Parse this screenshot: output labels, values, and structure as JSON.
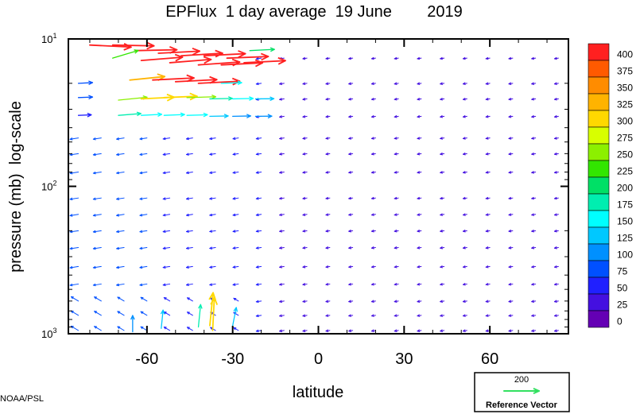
{
  "chart_data": {
    "type": "quiver",
    "title": "EPFlux  1 day average  19 June        2019",
    "xlabel": "latitude",
    "ylabel": "pressure (mb)  log-scale",
    "x_ticks": [
      -60,
      -30,
      0,
      30,
      60
    ],
    "x_tick_labels": [
      "-60",
      "-30",
      "0",
      "30",
      "60"
    ],
    "xlim": [
      -87.5,
      87.5
    ],
    "ylim": [
      1000,
      10
    ],
    "y_scale": "log",
    "y_ticks": [
      {
        "value": 10,
        "base": "10",
        "exp": "1"
      },
      {
        "value": 100,
        "base": "10",
        "exp": "2"
      },
      {
        "value": 1000,
        "base": "10",
        "exp": "3"
      }
    ],
    "grid": false,
    "colorbar": {
      "levels": [
        "400",
        "375",
        "350",
        "325",
        "300",
        "275",
        "250",
        "225",
        "200",
        "175",
        "150",
        "125",
        "100",
        "75",
        "50",
        "25",
        "0"
      ],
      "colors": [
        "#ff2020",
        "#ff5a00",
        "#ff8c00",
        "#ffb300",
        "#ffd800",
        "#d8ff00",
        "#8cf000",
        "#32e600",
        "#00e066",
        "#00eeb0",
        "#00ffff",
        "#00c8ff",
        "#0090ff",
        "#0050ff",
        "#2020ff",
        "#4410e0",
        "#6400b4"
      ]
    },
    "reference_vector": {
      "magnitude": "200",
      "label": "Reference Vector",
      "color": "#32e060"
    },
    "vectors": [
      {
        "lat": -80,
        "p": 11,
        "u": 1,
        "v": -0.05,
        "mag": 400
      },
      {
        "lat": -72,
        "p": 11,
        "u": 1,
        "v": -0.02,
        "mag": 400
      },
      {
        "lat": -64,
        "p": 12,
        "u": 1,
        "v": 0.02,
        "mag": 400
      },
      {
        "lat": -56,
        "p": 12.5,
        "u": 1,
        "v": 0.05,
        "mag": 400
      },
      {
        "lat": -48,
        "p": 13,
        "u": 1,
        "v": 0.06,
        "mag": 400
      },
      {
        "lat": -40,
        "p": 13,
        "u": 1,
        "v": 0.05,
        "mag": 400
      },
      {
        "lat": -32,
        "p": 13.5,
        "u": 1,
        "v": 0.04,
        "mag": 400
      },
      {
        "lat": -24,
        "p": 12,
        "u": 1,
        "v": 0.05,
        "mag": 200
      },
      {
        "lat": -72,
        "p": 13.5,
        "u": 1,
        "v": 0.3,
        "mag": 225
      },
      {
        "lat": -62,
        "p": 14,
        "u": 1,
        "v": 0.08,
        "mag": 400
      },
      {
        "lat": -52,
        "p": 14.5,
        "u": 1,
        "v": 0.08,
        "mag": 400
      },
      {
        "lat": -42,
        "p": 15,
        "u": 1,
        "v": 0.07,
        "mag": 400
      },
      {
        "lat": -34,
        "p": 15,
        "u": 1,
        "v": 0.05,
        "mag": 400
      },
      {
        "lat": -26,
        "p": 14.5,
        "u": 1,
        "v": 0.05,
        "mag": 400
      },
      {
        "lat": -84,
        "p": 20,
        "u": 1,
        "v": 0.05,
        "mag": 75
      },
      {
        "lat": -66,
        "p": 19,
        "u": 1,
        "v": 0.1,
        "mag": 325
      },
      {
        "lat": -58,
        "p": 19,
        "u": 1,
        "v": 0.05,
        "mag": 400
      },
      {
        "lat": -50,
        "p": 19.5,
        "u": 1,
        "v": 0.05,
        "mag": 400
      },
      {
        "lat": -42,
        "p": 20,
        "u": 1,
        "v": 0.05,
        "mag": 400
      },
      {
        "lat": -34,
        "p": 20,
        "u": 1,
        "v": 0.03,
        "mag": 150
      },
      {
        "lat": -84,
        "p": 25,
        "u": 1,
        "v": 0.04,
        "mag": 75
      },
      {
        "lat": -70,
        "p": 26,
        "u": 1,
        "v": 0.1,
        "mag": 250
      },
      {
        "lat": -62,
        "p": 25.5,
        "u": 1,
        "v": 0.05,
        "mag": 300
      },
      {
        "lat": -54,
        "p": 25,
        "u": 1,
        "v": 0.04,
        "mag": 300
      },
      {
        "lat": -46,
        "p": 25,
        "u": 1,
        "v": 0.03,
        "mag": 250
      },
      {
        "lat": -38,
        "p": 25.5,
        "u": 1,
        "v": 0.02,
        "mag": 175
      },
      {
        "lat": -30,
        "p": 25.5,
        "u": 1,
        "v": 0.02,
        "mag": 150
      },
      {
        "lat": -22,
        "p": 25.5,
        "u": 1,
        "v": 0.01,
        "mag": 125
      },
      {
        "lat": -84,
        "p": 33,
        "u": 1,
        "v": 0.04,
        "mag": 60
      },
      {
        "lat": -70,
        "p": 33,
        "u": 1,
        "v": 0.08,
        "mag": 175
      },
      {
        "lat": -62,
        "p": 33,
        "u": 1,
        "v": 0.05,
        "mag": 150
      },
      {
        "lat": -54,
        "p": 33,
        "u": 1,
        "v": 0.04,
        "mag": 150
      },
      {
        "lat": -46,
        "p": 33,
        "u": 1,
        "v": 0.03,
        "mag": 150
      },
      {
        "lat": -38,
        "p": 33.5,
        "u": 1,
        "v": 0.02,
        "mag": 125
      },
      {
        "lat": -30,
        "p": 33.5,
        "u": 1,
        "v": 0.02,
        "mag": 120
      },
      {
        "lat": -22,
        "p": 33.5,
        "u": 1,
        "v": 0.01,
        "mag": 100
      },
      {
        "lat": -42,
        "p": 900,
        "u": 0.1,
        "v": 1,
        "mag": 175
      },
      {
        "lat": -38,
        "p": 880,
        "u": 0.1,
        "v": 1,
        "mag": 300
      },
      {
        "lat": -37,
        "p": 950,
        "u": 0.05,
        "v": 1,
        "mag": 300
      },
      {
        "lat": -30,
        "p": 880,
        "u": 0.2,
        "v": 1,
        "mag": 125
      },
      {
        "lat": -55,
        "p": 920,
        "u": 0.1,
        "v": 1,
        "mag": 125
      },
      {
        "lat": -65,
        "p": 970,
        "u": 0,
        "v": 1,
        "mag": 100
      }
    ]
  },
  "footer": {
    "credit": "NOAA/PSL"
  }
}
